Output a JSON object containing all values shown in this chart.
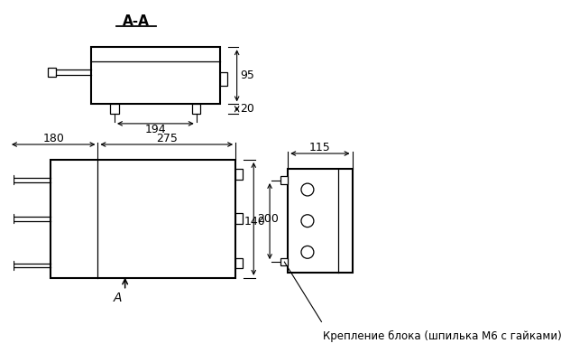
{
  "bg_color": "#ffffff",
  "line_color": "#000000",
  "title_aa": "А-А",
  "dim_194": "194",
  "dim_95": "95",
  "dim_20": "20",
  "dim_180": "180",
  "dim_275": "275",
  "dim_200": "200",
  "dim_115": "115",
  "dim_140": "140",
  "label_A": "А",
  "annotation": "Крепление блока (шпилька М6 с гайками)",
  "font_size_dims": 9,
  "font_size_title": 11,
  "font_size_annot": 8.5
}
